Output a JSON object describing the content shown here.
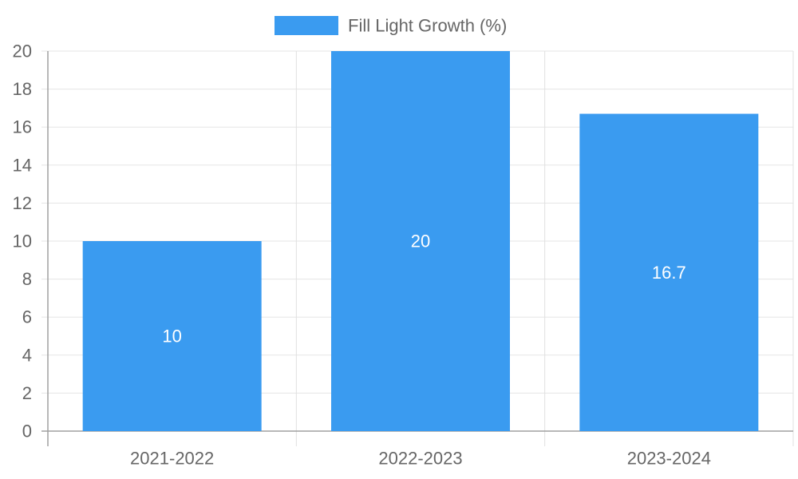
{
  "chart_data": {
    "type": "bar",
    "categories": [
      "2021-2022",
      "2022-2023",
      "2023-2024"
    ],
    "series": [
      {
        "name": "Fill Light Growth (%)",
        "values": [
          10,
          20,
          16.7
        ],
        "color": "#3a9bf0"
      }
    ],
    "ylim": [
      0,
      20
    ],
    "y_ticks": [
      0,
      2,
      4,
      6,
      8,
      10,
      12,
      14,
      16,
      18,
      20
    ],
    "grid": true,
    "legend_position": "top-center",
    "data_labels": [
      "10",
      "20",
      "16.7"
    ]
  }
}
